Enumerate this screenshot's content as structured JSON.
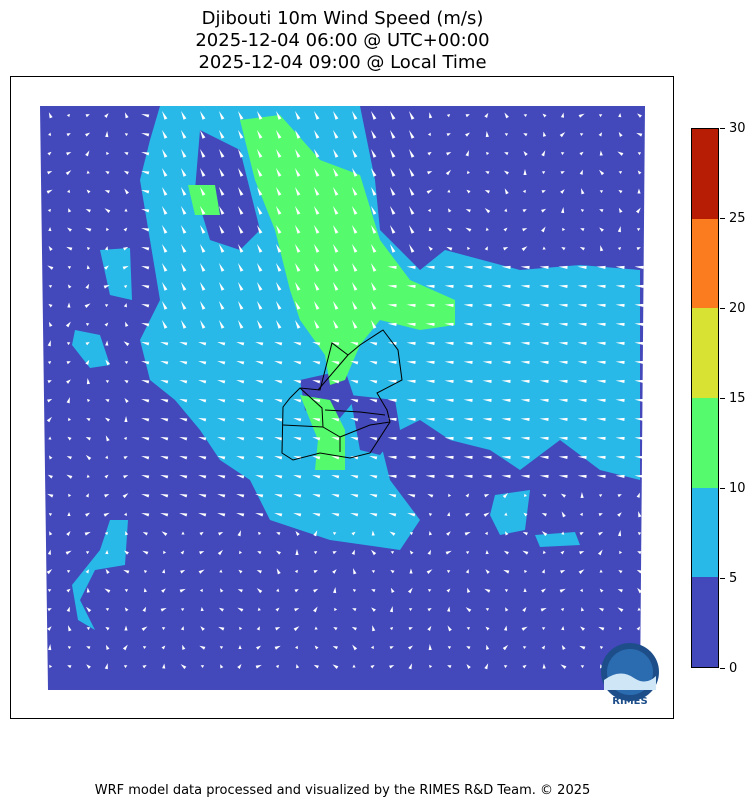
{
  "title": {
    "line1": "Djibouti 10m Wind Speed (m/s)",
    "line2": "2025-12-04 06:00 @ UTC+00:00",
    "line3": "2025-12-04 09:00 @ Local Time"
  },
  "colorbar": {
    "ticks": [
      "0",
      "5",
      "10",
      "15",
      "20",
      "25",
      "30"
    ],
    "colors": [
      "#4348bb",
      "#28b9e8",
      "#55fb6d",
      "#d8e232",
      "#fb7c1f",
      "#b71c05"
    ],
    "units": "m/s"
  },
  "map": {
    "ocean_land_low": "#4348bb",
    "arrow_color": "#ffffff",
    "border_color": "#000000"
  },
  "logo": {
    "text": "RIMES"
  },
  "footer": "WRF model data processed and visualized by the RIMES R&D Team. © 2025"
}
